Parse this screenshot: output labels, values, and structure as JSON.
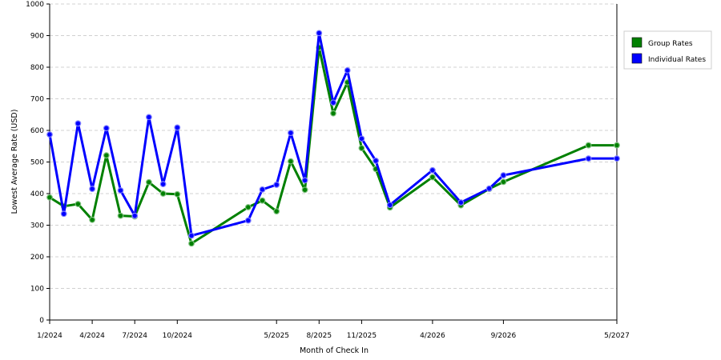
{
  "chart_data": {
    "type": "line",
    "title": "",
    "xlabel": "Month of Check In",
    "ylabel": "Lowest Average Rate (USD)",
    "ylim": [
      0,
      1000
    ],
    "yticks": [
      0,
      100,
      200,
      300,
      400,
      500,
      600,
      700,
      800,
      900,
      1000
    ],
    "x": [
      "1/2024",
      "2/2024",
      "3/2024",
      "4/2024",
      "5/2024",
      "6/2024",
      "7/2024",
      "8/2024",
      "9/2024",
      "10/2024",
      "11/2024",
      "12/2024",
      "1/2025",
      "2/2025",
      "3/2025",
      "4/2025",
      "5/2025",
      "6/2025",
      "7/2025",
      "8/2025",
      "9/2025",
      "10/2025",
      "11/2025",
      "12/2025",
      "1/2026",
      "2/2026",
      "3/2026",
      "4/2026",
      "5/2026",
      "6/2026",
      "7/2026",
      "8/2026",
      "9/2026",
      "10/2026",
      "11/2026",
      "12/2026",
      "1/2027",
      "2/2027",
      "3/2027",
      "4/2027",
      "5/2027"
    ],
    "xtick_labels": [
      "1/2024",
      "4/2024",
      "7/2024",
      "10/2024",
      "5/2025",
      "8/2025",
      "11/2025",
      "4/2026",
      "9/2026",
      "5/2027"
    ],
    "grid": true,
    "legend": "right",
    "series": [
      {
        "name": "Group Rates",
        "color": "#008000",
        "x": [
          "1/2024",
          "2/2024",
          "3/2024",
          "4/2024",
          "5/2024",
          "6/2024",
          "7/2024",
          "8/2024",
          "9/2024",
          "10/2024",
          "11/2024",
          "3/2025",
          "4/2025",
          "5/2025",
          "6/2025",
          "7/2025",
          "8/2025",
          "9/2025",
          "10/2025",
          "11/2025",
          "12/2025",
          "1/2026",
          "4/2026",
          "6/2026",
          "8/2026",
          "9/2026",
          "3/2027",
          "5/2027"
        ],
        "values": [
          388,
          360,
          367,
          317,
          521,
          330,
          328,
          436,
          400,
          398,
          242,
          357,
          378,
          344,
          502,
          412,
          862,
          654,
          752,
          544,
          478,
          356,
          452,
          363,
          415,
          437,
          553,
          553
        ]
      },
      {
        "name": "Individual Rates",
        "color": "#0000ff",
        "x": [
          "1/2024",
          "2/2024",
          "3/2024",
          "4/2024",
          "5/2024",
          "6/2024",
          "7/2024",
          "8/2024",
          "9/2024",
          "10/2024",
          "11/2024",
          "3/2025",
          "4/2025",
          "5/2025",
          "6/2025",
          "7/2025",
          "8/2025",
          "9/2025",
          "10/2025",
          "11/2025",
          "12/2025",
          "1/2026",
          "4/2026",
          "6/2026",
          "8/2026",
          "9/2026",
          "3/2027",
          "5/2027"
        ],
        "values": [
          587,
          336,
          622,
          415,
          607,
          410,
          330,
          642,
          430,
          609,
          267,
          315,
          413,
          428,
          592,
          442,
          908,
          688,
          790,
          574,
          504,
          364,
          474,
          372,
          416,
          458,
          511,
          511
        ]
      }
    ]
  }
}
